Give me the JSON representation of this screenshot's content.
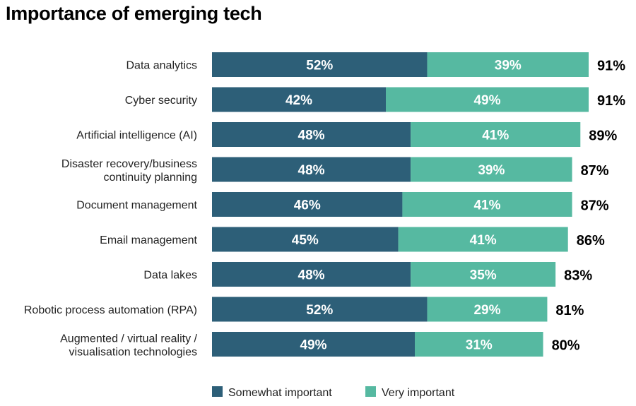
{
  "chart_data": {
    "type": "bar",
    "orientation": "horizontal",
    "stacked": true,
    "title": "Importance of emerging tech",
    "categories": [
      [
        "Data analytics"
      ],
      [
        "Cyber security"
      ],
      [
        "Artificial intelligence (AI)"
      ],
      [
        "Disaster recovery/business",
        "continuity planning"
      ],
      [
        "Document management"
      ],
      [
        "Email management"
      ],
      [
        "Data lakes"
      ],
      [
        "Robotic process automation (RPA)"
      ],
      [
        "Augmented / virtual reality /",
        "visualisation technologies"
      ]
    ],
    "series": [
      {
        "name": "Somewhat important",
        "color": "#2d5f78",
        "values": [
          52,
          42,
          48,
          48,
          46,
          45,
          48,
          52,
          49
        ]
      },
      {
        "name": "Very important",
        "color": "#56b9a1",
        "values": [
          39,
          49,
          41,
          39,
          41,
          41,
          35,
          29,
          31
        ]
      }
    ],
    "totals": [
      91,
      91,
      89,
      87,
      87,
      86,
      83,
      81,
      80
    ],
    "value_suffix": "%",
    "legend_position": "bottom"
  }
}
